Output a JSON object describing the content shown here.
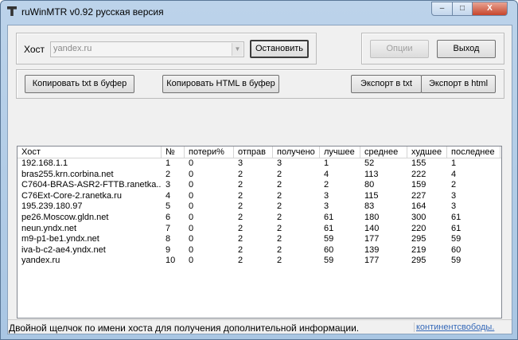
{
  "window": {
    "title": "ruWinMTR v0.92 русская версия",
    "minimize": "–",
    "maximize": "□",
    "close": "X"
  },
  "toolbar": {
    "host_label": "Хост",
    "host_value": "yandex.ru",
    "stop": "Остановить",
    "options": "Опции",
    "exit": "Выход",
    "copy_txt": "Копировать txt в буфер",
    "copy_html": "Копировать HTML в буфер",
    "export_txt": "Экспорт в txt",
    "export_html": "Экспорт в html"
  },
  "table": {
    "columns": [
      "Хост",
      "№",
      "потери%",
      "отправ",
      "получено",
      "лучшее",
      "среднее",
      "худшее",
      "последнее"
    ],
    "rows": [
      [
        "192.168.1.1",
        "1",
        "0",
        "3",
        "3",
        "1",
        "52",
        "155",
        "1"
      ],
      [
        "bras255.krn.corbina.net",
        "2",
        "0",
        "2",
        "2",
        "4",
        "113",
        "222",
        "4"
      ],
      [
        "C7604-BRAS-ASR2-FTTB.ranetka...",
        "3",
        "0",
        "2",
        "2",
        "2",
        "80",
        "159",
        "2"
      ],
      [
        "C76Ext-Core-2.ranetka.ru",
        "4",
        "0",
        "2",
        "2",
        "3",
        "115",
        "227",
        "3"
      ],
      [
        "195.239.180.97",
        "5",
        "0",
        "2",
        "2",
        "3",
        "83",
        "164",
        "3"
      ],
      [
        "pe26.Moscow.gldn.net",
        "6",
        "0",
        "2",
        "2",
        "61",
        "180",
        "300",
        "61"
      ],
      [
        "neun.yndx.net",
        "7",
        "0",
        "2",
        "2",
        "61",
        "140",
        "220",
        "61"
      ],
      [
        "m9-p1-be1.yndx.net",
        "8",
        "0",
        "2",
        "2",
        "59",
        "177",
        "295",
        "59"
      ],
      [
        "iva-b-c2-ae4.yndx.net",
        "9",
        "0",
        "2",
        "2",
        "60",
        "139",
        "219",
        "60"
      ],
      [
        "yandex.ru",
        "10",
        "0",
        "2",
        "2",
        "59",
        "177",
        "295",
        "59"
      ]
    ]
  },
  "status": {
    "text": "Двойной щелчок по имени хоста для получения дополнительной информации.",
    "link": "континентсвободы."
  }
}
